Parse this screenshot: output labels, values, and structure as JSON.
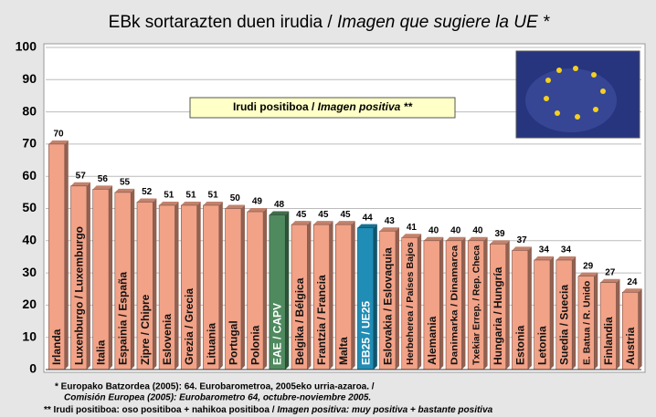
{
  "chart_data": {
    "type": "bar",
    "title": [
      "EBk sortarazten duen irudia /",
      "Imagen que sugiere la UE *"
    ],
    "annotation": [
      "Irudi positiboa /",
      "Imagen positiva **"
    ],
    "categories": [
      "Irlanda",
      "Luxenburgo / Luxemburgo",
      "Italia",
      "Espainia / España",
      "Zipre / Chipre",
      "Eslovenia",
      "Grezia / Grecia",
      "Lituania",
      "Portugal",
      "Polonia",
      "EAE / CAPV",
      "Belgika / Bélgica",
      "Frantzia / Francia",
      "Malta",
      "EB25 / UE25",
      "Eslovakia / Eslovaquia",
      "Herbeherea / Países Bajos",
      "Alemania",
      "Danimarka / Dinamarca",
      "Txekiar Errep. / Rep. Checa",
      "Hungaria / Hungría",
      "Estonia",
      "Letonia",
      "Suedia / Suecia",
      "E. Batua / R. Unido",
      "Finlandia",
      "Austria"
    ],
    "values": [
      70,
      57,
      56,
      55,
      52,
      51,
      51,
      51,
      50,
      49,
      48,
      45,
      45,
      45,
      44,
      43,
      41,
      40,
      40,
      40,
      39,
      37,
      34,
      34,
      29,
      27,
      24
    ],
    "colors": [
      "#f2a287",
      "#f2a287",
      "#f2a287",
      "#f2a287",
      "#f2a287",
      "#f2a287",
      "#f2a287",
      "#f2a287",
      "#f2a287",
      "#f2a287",
      "#4f8a5e",
      "#f2a287",
      "#f2a287",
      "#f2a287",
      "#1f8db5",
      "#f2a287",
      "#f2a287",
      "#f2a287",
      "#f2a287",
      "#f2a287",
      "#f2a287",
      "#f2a287",
      "#f2a287",
      "#f2a287",
      "#f2a287",
      "#f2a287",
      "#f2a287"
    ],
    "ylim": [
      0,
      100
    ],
    "yticks": [
      0,
      10,
      20,
      30,
      40,
      50,
      60,
      70,
      80,
      90,
      100
    ],
    "grid": true,
    "footnotes": [
      "* Europako Batzordea (2005): 64. Eurobarometroa, 2005eko urria-azaroa. /",
      "Comisión Europea (2005): Eurobarometro 64, octubre-noviembre 2005.",
      "** Irudi positiboa: oso positiboa + nahikoa positiboa /",
      "Imagen positiva: muy positiva + bastante positiva"
    ]
  }
}
